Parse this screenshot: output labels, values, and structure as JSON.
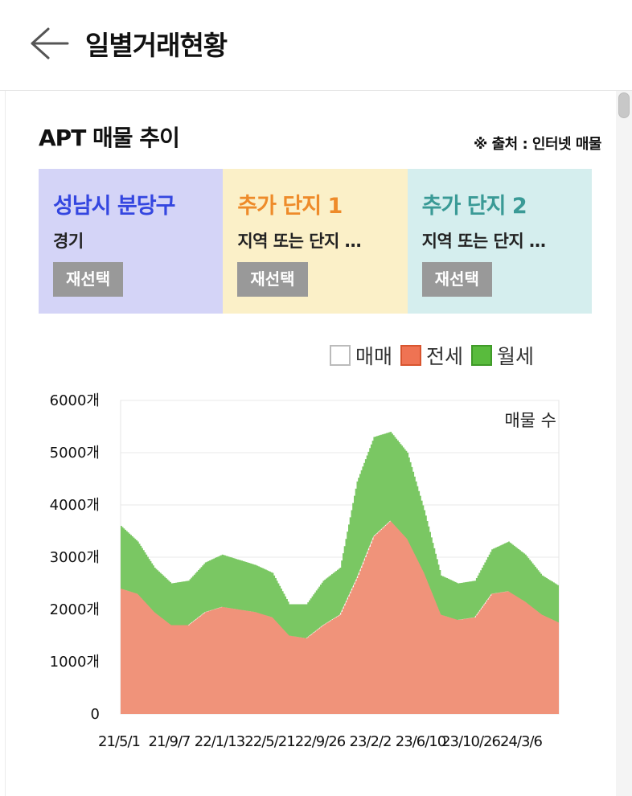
{
  "header": {
    "title": "일별거래현황",
    "back_icon": "arrow-left-icon"
  },
  "section": {
    "title": "APT 매물 추이",
    "source": "※ 출처 : 인터넷 매물"
  },
  "cards": [
    {
      "title": "성남시 분당구",
      "subtitle": "경기",
      "button": "재선택",
      "bg": "#d4d4f7",
      "title_color": "#3446e0"
    },
    {
      "title": "추가 단지 1",
      "subtitle": "지역 또는 단지 …",
      "button": "재선택",
      "bg": "#fbf0c8",
      "title_color": "#ee8b2a"
    },
    {
      "title": "추가 단지 2",
      "subtitle": "지역 또는 단지 …",
      "button": "재선택",
      "bg": "#d5eeee",
      "title_color": "#3a9a96"
    }
  ],
  "legend": [
    {
      "label": "매매",
      "fill": "#ffffff",
      "border": "#bbbbbb"
    },
    {
      "label": "전세",
      "fill": "#ef7353",
      "border": "#d8552f"
    },
    {
      "label": "월세",
      "fill": "#59bb3d",
      "border": "#3f9a28"
    }
  ],
  "chart_data": {
    "type": "area",
    "stacked": true,
    "annotation": "매물 수",
    "ylim": [
      0,
      6000
    ],
    "y_ticks": [
      "0",
      "1000개",
      "2000개",
      "3000개",
      "4000개",
      "5000개",
      "6000개"
    ],
    "x_ticks": [
      "21/5/1",
      "21/9/7",
      "22/1/13",
      "22/5/21",
      "22/9/26",
      "23/2/2",
      "23/6/10",
      "23/10/26",
      "24/3/6"
    ],
    "grid": true,
    "x": [
      "21/5/1",
      "21/6/10",
      "21/7/20",
      "21/8/29",
      "21/9/7",
      "21/10/20",
      "21/11/29",
      "22/1/13",
      "22/2/18",
      "22/3/30",
      "22/5/21",
      "22/6/20",
      "22/7/30",
      "22/9/26",
      "22/11/10",
      "22/12/20",
      "23/2/2",
      "23/3/14",
      "23/4/25",
      "23/6/10",
      "23/7/15",
      "23/8/25",
      "23/10/26",
      "23/12/10",
      "24/1/20",
      "24/3/6",
      "24/4/10"
    ],
    "series": [
      {
        "name": "전세",
        "color": "#f0937a",
        "values": [
          2400,
          2300,
          1950,
          1700,
          1700,
          1950,
          2050,
          2000,
          1950,
          1850,
          1500,
          1450,
          1700,
          1900,
          2600,
          3400,
          3700,
          3350,
          2700,
          1900,
          1800,
          1850,
          2300,
          2350,
          2150,
          1900,
          1750
        ]
      },
      {
        "name": "월세",
        "color": "#7ac763",
        "values": [
          1200,
          1000,
          850,
          800,
          850,
          950,
          1000,
          950,
          900,
          850,
          600,
          650,
          850,
          900,
          1850,
          1900,
          1700,
          1650,
          1200,
          750,
          700,
          700,
          850,
          950,
          900,
          750,
          700
        ]
      }
    ]
  }
}
